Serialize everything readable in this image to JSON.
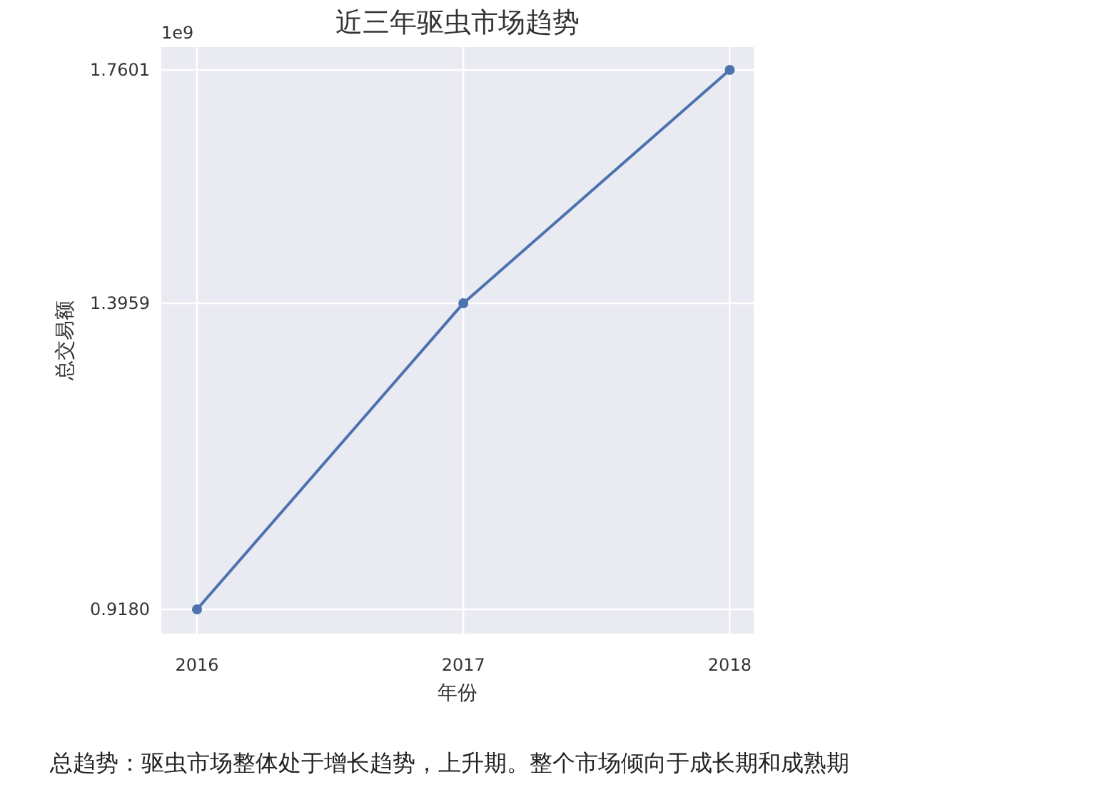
{
  "chart_data": {
    "type": "line",
    "title": "近三年驱虫市场趋势",
    "xlabel": "年份",
    "ylabel": "总交易额",
    "x": [
      2016,
      2017,
      2018
    ],
    "series": [
      {
        "color": "#4c72b0",
        "values": [
          0.918,
          1.3959,
          1.7601
        ]
      }
    ],
    "xlim": [
      2015.866,
      2018.09
    ],
    "xticks": [
      2016,
      2017,
      2018
    ],
    "ylim": [
      0.8801,
      1.7957
    ],
    "yticks": [
      {
        "value": 0.918,
        "label": "0.9180"
      },
      {
        "value": 1.3959,
        "label": "1.3959"
      },
      {
        "value": 1.7601,
        "label": "1.7601"
      }
    ],
    "grid": true,
    "marker": "circle",
    "line_style": "solid",
    "annotations": [
      "1e9",
      "总趋势：驱虫市场整体处于增长趋势，上升期。整个市场倾向于成长期和成熟期"
    ]
  }
}
